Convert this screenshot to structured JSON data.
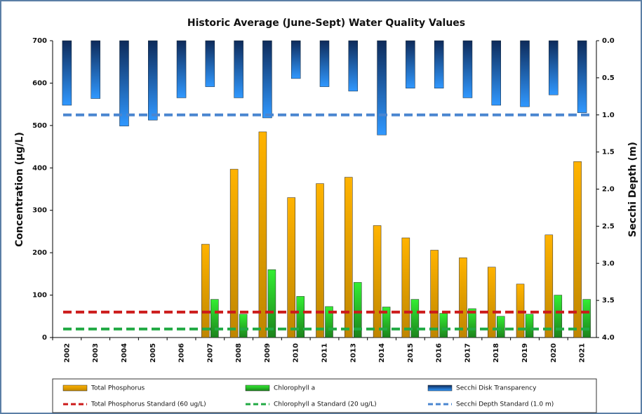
{
  "chart_data": {
    "type": "bar",
    "title": "Historic Average (June-Sept) Water Quality Values",
    "y_label": "Concentration (µg/L)",
    "y2_label": "Secchi Depth (m)",
    "categories": [
      "2002",
      "2003",
      "2004",
      "2005",
      "2006",
      "2007",
      "2008",
      "2009",
      "2010",
      "2011",
      "2013",
      "2014",
      "2015",
      "2016",
      "2017",
      "2018",
      "2019",
      "2020",
      "2021"
    ],
    "series": [
      {
        "name": "Total Phosphorus",
        "color": "#ffb300",
        "values": [
          null,
          null,
          null,
          null,
          null,
          220,
          397,
          485,
          330,
          363,
          378,
          264,
          235,
          206,
          188,
          166,
          126,
          242,
          415
        ]
      },
      {
        "name": "Chlorophyll a",
        "color": "#33ee33",
        "values": [
          null,
          null,
          null,
          null,
          null,
          90,
          55,
          160,
          97,
          73,
          130,
          72,
          90,
          57,
          68,
          50,
          55,
          100,
          90
        ]
      },
      {
        "name": "Secchi Disk Transparency",
        "color": "#1e5fc8",
        "axis": "y2",
        "values": [
          0.87,
          0.78,
          1.15,
          1.07,
          0.77,
          0.62,
          0.77,
          1.04,
          0.51,
          0.62,
          0.68,
          1.27,
          0.64,
          0.64,
          0.77,
          0.87,
          0.89,
          0.73,
          0.97
        ]
      }
    ],
    "standards": [
      {
        "name": "Total Phosphorus Standard (60 ug/L)",
        "color": "#cc1a1a",
        "value": 60
      },
      {
        "name": "Chlorophyll a Standard (20 ug/L)",
        "color": "#22aa44",
        "value": 20
      },
      {
        "name": "Secchi Depth Standard (1.0 m)",
        "color": "#4a86d0",
        "value": 1.0,
        "axis": "y2"
      }
    ],
    "ylim": [
      0,
      700
    ],
    "yticks": [
      0,
      100,
      200,
      300,
      400,
      500,
      600,
      700
    ],
    "y2lim": [
      0,
      4
    ],
    "y2_inverted": true,
    "y2ticks": [
      {
        "value": 0,
        "label": "0.0"
      },
      0.5,
      {
        "value": 1,
        "label": "1.0"
      },
      1.5,
      {
        "value": 2,
        "label": "2.0"
      },
      2.5,
      {
        "value": 3,
        "label": "3.0"
      },
      3.5,
      {
        "value": 4,
        "label": "4.0"
      }
    ],
    "grid": false
  }
}
